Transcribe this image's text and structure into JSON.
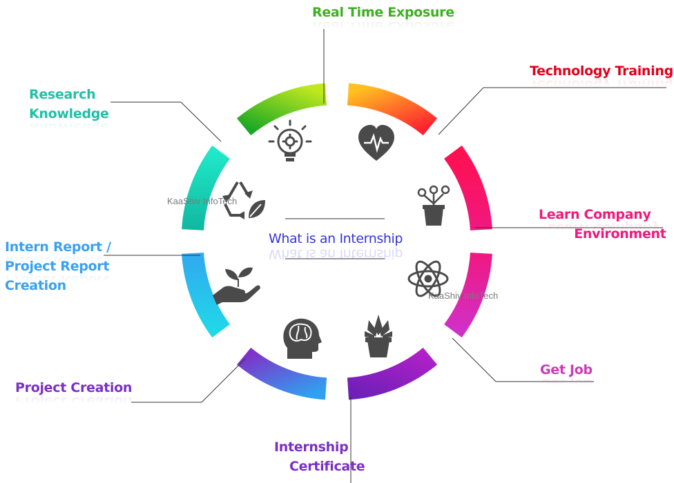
{
  "center_title": "What is an Internship",
  "watermarks": [
    "KaaShiv InfoTech",
    "KaaShiv InfoTech"
  ],
  "labels": [
    {
      "id": "real-time-exposure",
      "lines": [
        "Real Time Exposure"
      ],
      "color": "#3cb01e"
    },
    {
      "id": "technology-training",
      "lines": [
        "Technology Training"
      ],
      "color": "#e0001a"
    },
    {
      "id": "learn-company-environment",
      "lines": [
        "Learn Company",
        "Environment"
      ],
      "color": "#f0187a"
    },
    {
      "id": "get-job",
      "lines": [
        "Get Job"
      ],
      "color": "#cc3ab8"
    },
    {
      "id": "internship-certificate",
      "lines": [
        "Internship",
        "Certificate"
      ],
      "color": "#7b2fc4"
    },
    {
      "id": "project-creation",
      "lines": [
        "Project Creation"
      ],
      "color": "#7b2fc4"
    },
    {
      "id": "intern-report",
      "lines": [
        "Intern Report /",
        "Project Report",
        "Creation"
      ],
      "color": "#3aa0f0"
    },
    {
      "id": "research-knowledge",
      "lines": [
        "Research",
        "Knowledge"
      ],
      "color": "#20c0a8"
    }
  ],
  "segment_colors": {
    "top_left": [
      "#1aa824",
      "#c0e820"
    ],
    "top_right": [
      "#ffc020",
      "#ff2030"
    ],
    "right_upper": [
      "#ff1050",
      "#f01880"
    ],
    "right_lower": [
      "#f01880",
      "#d030c8"
    ],
    "bottom_right": [
      "#b020c8",
      "#7020b8"
    ],
    "bottom_left": [
      "#8030c8",
      "#30a0f0"
    ],
    "left_lower": [
      "#30a8f0",
      "#20d8e8"
    ],
    "left_upper": [
      "#10b8a0",
      "#20e8c8"
    ]
  },
  "icons": [
    "lightbulb-gear-icon",
    "heart-pulse-icon",
    "flower-pot-icon",
    "atom-icon",
    "succulent-pot-icon",
    "brain-head-icon",
    "plant-hand-icon",
    "recycle-leaf-icon"
  ]
}
